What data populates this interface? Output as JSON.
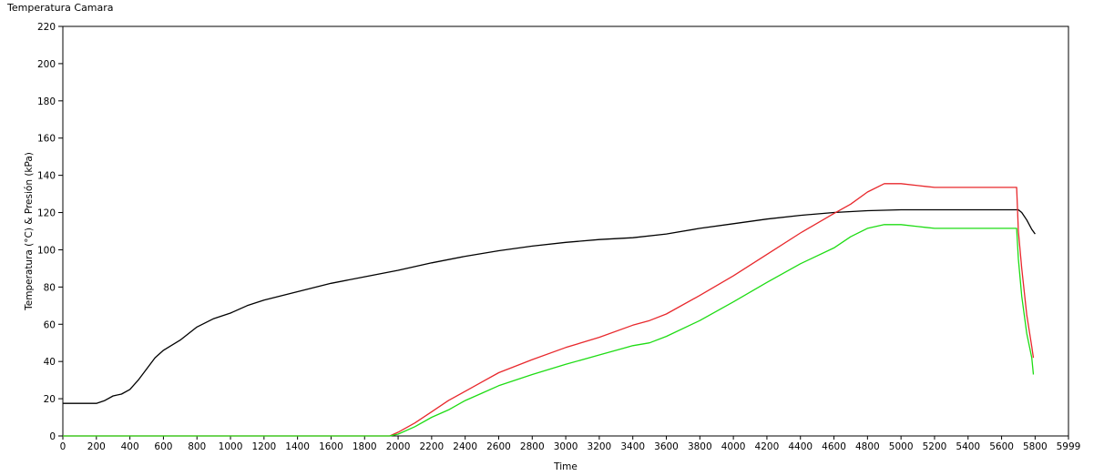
{
  "window_title": "Temperatura Camara",
  "chart_data": {
    "type": "line",
    "title": "",
    "xlabel": "Time",
    "ylabel": "Temperatura (°C) & Presión (kPa)",
    "xlim": [
      0,
      5999
    ],
    "ylim": [
      0,
      220
    ],
    "x_ticks": [
      0,
      200,
      400,
      600,
      800,
      1000,
      1200,
      1400,
      1600,
      1800,
      2000,
      2200,
      2400,
      2600,
      2800,
      3000,
      3200,
      3400,
      3600,
      3800,
      4000,
      4200,
      4400,
      4600,
      4800,
      5000,
      5200,
      5400,
      5600,
      5800,
      5999
    ],
    "y_ticks": [
      0,
      20,
      40,
      60,
      80,
      100,
      120,
      140,
      160,
      180,
      200,
      220
    ],
    "grid": false,
    "legend": "none",
    "series": [
      {
        "color": "#000000",
        "x": [
          0,
          100,
          200,
          250,
          300,
          350,
          400,
          450,
          500,
          550,
          600,
          700,
          800,
          900,
          1000,
          1100,
          1200,
          1400,
          1600,
          1800,
          2000,
          2200,
          2400,
          2600,
          2800,
          3000,
          3200,
          3400,
          3600,
          3800,
          4000,
          4200,
          4400,
          4600,
          4800,
          5000,
          5200,
          5400,
          5600,
          5700,
          5720,
          5750,
          5780,
          5800
        ],
        "y": [
          17.5,
          17.5,
          17.5,
          19,
          21.5,
          22.5,
          25,
          30,
          36,
          42,
          46,
          51.5,
          58.5,
          63,
          66,
          70,
          73,
          77.5,
          82,
          85.5,
          89,
          93,
          96.5,
          99.5,
          102,
          104,
          105.5,
          106.5,
          108.5,
          111.5,
          114,
          116.5,
          118.5,
          120,
          121,
          121.5,
          121.5,
          121.5,
          121.5,
          121.5,
          120,
          116,
          111,
          108.5
        ]
      },
      {
        "color": "#e8282c",
        "x": [
          0,
          1900,
          1950,
          2000,
          2100,
          2200,
          2300,
          2400,
          2500,
          2600,
          2800,
          3000,
          3200,
          3400,
          3500,
          3600,
          3800,
          4000,
          4200,
          4400,
          4600,
          4700,
          4800,
          4900,
          5000,
          5100,
          5200,
          5400,
          5600,
          5690,
          5700,
          5720,
          5750,
          5780,
          5790
        ],
        "y": [
          0,
          0,
          0,
          2,
          7,
          13,
          19,
          24,
          29,
          34,
          41,
          47.5,
          53,
          59.5,
          62,
          65.5,
          75.5,
          86,
          97.5,
          109,
          119.5,
          124.5,
          131,
          135.5,
          135.5,
          134.5,
          133.5,
          133.5,
          133.5,
          133.5,
          110,
          90,
          65,
          48,
          42
        ]
      },
      {
        "color": "#1edc14",
        "x": [
          0,
          1900,
          1950,
          2000,
          2100,
          2200,
          2300,
          2400,
          2500,
          2600,
          2800,
          3000,
          3200,
          3400,
          3500,
          3600,
          3800,
          4000,
          4200,
          4400,
          4600,
          4700,
          4800,
          4900,
          5000,
          5100,
          5200,
          5400,
          5600,
          5690,
          5700,
          5720,
          5750,
          5780,
          5790
        ],
        "y": [
          0,
          0,
          0,
          1,
          5,
          10,
          14,
          19,
          23,
          27,
          33,
          38.5,
          43.5,
          48.5,
          50,
          53.5,
          62,
          72,
          82.5,
          92.5,
          101,
          107,
          111.5,
          113.5,
          113.5,
          112.5,
          111.5,
          111.5,
          111.5,
          111.5,
          95,
          75,
          55,
          42,
          33
        ]
      }
    ]
  }
}
